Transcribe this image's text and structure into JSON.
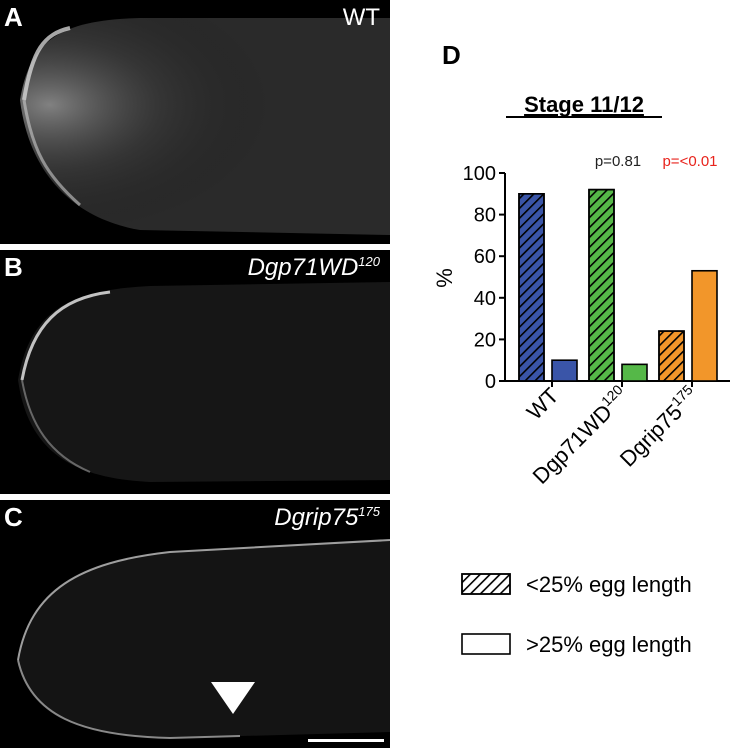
{
  "panels": [
    {
      "letter": "A",
      "genotype": "WT",
      "superscript": "",
      "italic": false
    },
    {
      "letter": "B",
      "genotype": "Dgp71WD",
      "superscript": "120",
      "italic": true
    },
    {
      "letter": "C",
      "genotype": "Dgrip75",
      "superscript": "175",
      "italic": true
    }
  ],
  "panel_d": {
    "letter": "D",
    "stage_title": "Stage 11/12",
    "pvalues": [
      {
        "label": "p=0.81",
        "color": "#222222"
      },
      {
        "label": "p=<0.01",
        "color": "#e8231c"
      }
    ],
    "legend": [
      {
        "label": "<25% egg length",
        "pattern": "hatched"
      },
      {
        "label": ">25% egg length",
        "pattern": "open"
      }
    ]
  },
  "chart_data": {
    "type": "bar",
    "title": "Stage 11/12",
    "ylabel": "%",
    "ylim": [
      0,
      100
    ],
    "yticks": [
      "0",
      "20",
      "40",
      "60",
      "80",
      "100"
    ],
    "categories": [
      {
        "name": "WT",
        "sup": ""
      },
      {
        "name": "Dgp71WD",
        "sup": "120"
      },
      {
        "name": "Dgrip75",
        "sup": "175"
      }
    ],
    "series": [
      {
        "name": "<25% egg length",
        "values": [
          90,
          92,
          24
        ]
      },
      {
        "name": ">25% egg length",
        "values": [
          10,
          8,
          53
        ]
      }
    ],
    "colors": [
      "#3a55a8",
      "#55b848",
      "#f2962a"
    ]
  }
}
